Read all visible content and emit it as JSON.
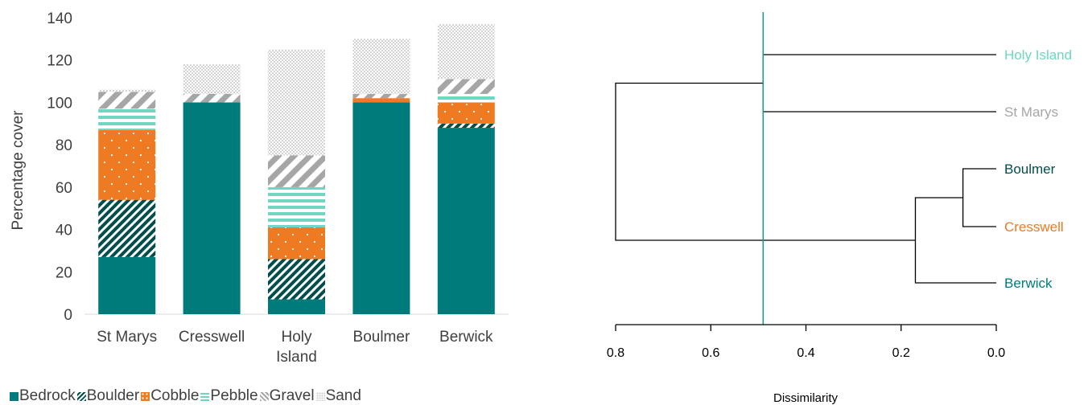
{
  "chart_data": [
    {
      "type": "bar",
      "stacked": true,
      "categories": [
        "St Marys",
        "Cresswell",
        "Holy Island",
        "Boulmer",
        "Berwick"
      ],
      "category_lines": [
        [
          "St Marys"
        ],
        [
          "Cresswell"
        ],
        [
          "Holy",
          "Island"
        ],
        [
          "Boulmer"
        ],
        [
          "Berwick"
        ]
      ],
      "ylabel": "Percentage cover",
      "ylim": [
        0,
        140
      ],
      "yticks": [
        0,
        20,
        40,
        60,
        80,
        100,
        120,
        140
      ],
      "grid": false,
      "legend_position": "bottom-left",
      "series": [
        {
          "name": "Bedrock",
          "color": "#007b7b",
          "pattern": "solid",
          "values": [
            27,
            100,
            7,
            100,
            88
          ]
        },
        {
          "name": "Boulder",
          "color": "#004d4d",
          "pattern": "diagonal-hatch",
          "values": [
            27,
            0,
            19,
            0,
            2
          ]
        },
        {
          "name": "Cobble",
          "color": "#ee7a22",
          "pattern": "dots",
          "values": [
            33,
            0,
            15,
            2,
            10
          ]
        },
        {
          "name": "Pebble",
          "color": "#6fd6bf",
          "pattern": "horizontal-stripes",
          "values": [
            10,
            0,
            19,
            0,
            4
          ]
        },
        {
          "name": "Gravel",
          "color": "#a6a6a6",
          "pattern": "wide-diagonal",
          "values": [
            8,
            4,
            15,
            2,
            7
          ]
        },
        {
          "name": "Sand",
          "color": "#cfcfcf",
          "pattern": "fine-dots",
          "values": [
            1,
            14,
            50,
            26,
            26
          ]
        }
      ]
    },
    {
      "type": "dendrogram",
      "xlabel": "Dissimilarity",
      "xlim": [
        0.8,
        0.0
      ],
      "xticks": [
        "0.8",
        "0.6",
        "0.4",
        "0.2",
        "0.0"
      ],
      "xtick_values": [
        0.8,
        0.6,
        0.4,
        0.2,
        0.0
      ],
      "cut_height": 0.49,
      "cut_color": "#1a9a8a",
      "leaves": [
        {
          "name": "Holy Island",
          "color": "#6fd6bf"
        },
        {
          "name": "St Marys",
          "color": "#a6a6a6"
        },
        {
          "name": "Boulmer",
          "color": "#004d4d"
        },
        {
          "name": "Cresswell",
          "color": "#ee7a22"
        },
        {
          "name": "Berwick",
          "color": "#007b7b"
        }
      ],
      "merges": [
        {
          "left": "Holy Island",
          "right": "St Marys",
          "height": 0.49
        },
        {
          "left": "Boulmer",
          "right": "Cresswell",
          "height": 0.07
        },
        {
          "left": "Boulmer+Cresswell",
          "right": "Berwick",
          "height": 0.17
        },
        {
          "left": "Holy Island+St Marys",
          "right": "Boulmer+Cresswell+Berwick",
          "height": 0.8
        }
      ]
    }
  ]
}
